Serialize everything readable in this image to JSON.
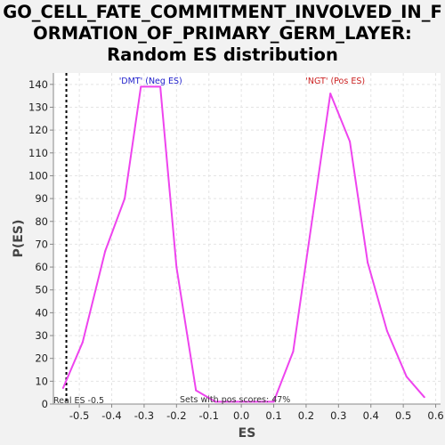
{
  "chart_data": {
    "type": "line",
    "title_lines": [
      "GO_CELL_FATE_COMMITMENT_INVOLVED_IN_F",
      "ORMATION_OF_PRIMARY_GERM_LAYER:",
      "Random ES distribution"
    ],
    "xlabel": "ES",
    "ylabel": "P(ES)",
    "xlim": [
      -0.58,
      0.615
    ],
    "ylim": [
      0,
      145
    ],
    "xticks": [
      -0.5,
      -0.4,
      -0.3,
      -0.2,
      -0.1,
      0.0,
      0.1,
      0.2,
      0.3,
      0.4,
      0.5,
      0.6
    ],
    "xtick_labels": [
      "-0.5",
      "-0.4",
      "-0.3",
      "-0.2",
      "-0.1",
      "0.0",
      "0.1",
      "0.2",
      "0.3",
      "0.4",
      "0.5",
      "0.6"
    ],
    "yticks": [
      0,
      10,
      20,
      30,
      40,
      50,
      60,
      70,
      80,
      90,
      100,
      110,
      120,
      130,
      140
    ],
    "grid": true,
    "series": [
      {
        "color": "#ee44ee",
        "x": [
          -0.55,
          -0.49,
          -0.42,
          -0.36,
          -0.31,
          -0.25,
          -0.2,
          -0.14,
          -0.08,
          -0.02,
          0.04,
          0.1,
          0.16,
          0.22,
          0.275,
          0.335,
          0.39,
          0.45,
          0.51,
          0.565
        ],
        "values": [
          7,
          27,
          67,
          90,
          139,
          139,
          60,
          6,
          1,
          1,
          1,
          1,
          23,
          82,
          136,
          115,
          62,
          32,
          12,
          3
        ]
      }
    ],
    "real_es": -0.54,
    "annotations": {
      "neg": {
        "text": "'DMT' (Neg ES)",
        "color": "#2222cc"
      },
      "pos": {
        "text": "'NGT' (Pos ES)",
        "color": "#cc2222"
      },
      "real_es_label": "Real ES -0.5",
      "pos_scores": "Sets with pos scores: 47%"
    }
  }
}
